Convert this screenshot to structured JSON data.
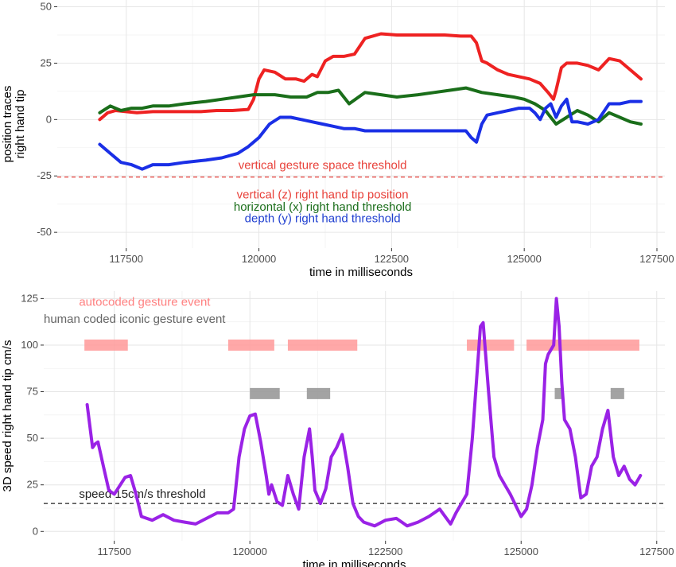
{
  "chart_data": [
    {
      "type": "line",
      "xlabel": "time in milliseconds",
      "ylabel_line1": "position traces",
      "ylabel_line2": "right hand tip",
      "xlim": [
        116200,
        127650
      ],
      "ylim": [
        -57,
        53
      ],
      "x_ticks": [
        117500,
        120000,
        122500,
        125000,
        127500
      ],
      "x_tick_labels": [
        "117500",
        "120000",
        "122500",
        "125000",
        "127500"
      ],
      "y_ticks": [
        -50,
        -25,
        0,
        25,
        50
      ],
      "y_tick_labels": [
        "-50",
        "-25",
        "0",
        "25",
        "50"
      ],
      "threshold": {
        "y": -25.5,
        "label": "vertical gesture space threshold",
        "color": "#e8413a",
        "label_x": 121200,
        "label_y": -22
      },
      "annotations": [
        {
          "text": "vertical (z) right hand tip position",
          "x": 121200,
          "y": -35,
          "color": "#e8413a"
        },
        {
          "text": "horizontal (x) right hand  threshold",
          "x": 121200,
          "y": -40.5,
          "color": "#1a6e1a"
        },
        {
          "text": "depth (y) right hand  threshold",
          "x": 121200,
          "y": -45.5,
          "color": "#1f3fd0"
        }
      ],
      "series": [
        {
          "color": "#ee2222",
          "x": [
            117000,
            117150,
            117300,
            117500,
            117700,
            118000,
            118300,
            118600,
            118900,
            119200,
            119500,
            119800,
            119900,
            120000,
            120100,
            120300,
            120500,
            120700,
            120850,
            121000,
            121100,
            121250,
            121400,
            121600,
            121800,
            122000,
            122300,
            122600,
            122900,
            123200,
            123500,
            123800,
            124000,
            124100,
            124200,
            124300,
            124500,
            124700,
            124900,
            125100,
            125300,
            125450,
            125550,
            125600,
            125700,
            125800,
            126000,
            126200,
            126400,
            126600,
            126800,
            127000,
            127200
          ],
          "y": [
            0,
            3,
            4,
            3.5,
            3,
            3.5,
            3.5,
            3.5,
            3.5,
            4,
            4,
            4.5,
            9,
            18,
            22,
            21,
            18,
            18,
            17,
            20,
            19,
            26,
            28,
            28,
            29,
            36,
            38,
            37.5,
            37.5,
            37.5,
            37.5,
            37,
            37,
            34,
            26,
            25,
            22,
            20,
            19,
            18,
            16,
            12,
            9,
            13,
            23,
            25,
            25,
            24,
            22,
            27,
            26,
            22,
            18
          ]
        },
        {
          "color": "#1a6e1a",
          "x": [
            117000,
            117200,
            117400,
            117600,
            117800,
            118000,
            118300,
            118600,
            119000,
            119300,
            119600,
            119900,
            120000,
            120300,
            120600,
            120900,
            121100,
            121300,
            121500,
            121700,
            122000,
            122300,
            122600,
            123000,
            123300,
            123600,
            123900,
            124200,
            124500,
            124800,
            125000,
            125200,
            125400,
            125600,
            125800,
            126000,
            126200,
            126400,
            126600,
            126800,
            127000,
            127200
          ],
          "y": [
            3,
            6,
            4,
            5,
            5,
            6,
            6,
            7,
            8,
            9,
            10,
            11,
            11,
            11,
            10,
            10,
            12,
            12,
            13,
            7,
            12,
            11,
            10,
            11,
            12,
            13,
            14,
            12,
            11,
            10,
            9,
            7,
            4,
            -2,
            1,
            4,
            2,
            -1,
            3,
            1,
            -1,
            -2
          ]
        },
        {
          "color": "#1a2fe6",
          "x": [
            117000,
            117200,
            117400,
            117600,
            117800,
            118000,
            118300,
            118600,
            119000,
            119300,
            119600,
            119800,
            119900,
            120000,
            120200,
            120400,
            120600,
            120800,
            121000,
            121200,
            121400,
            121600,
            121800,
            122000,
            122300,
            122600,
            123000,
            123300,
            123600,
            123900,
            124000,
            124100,
            124200,
            124300,
            124500,
            124700,
            124900,
            125100,
            125200,
            125300,
            125400,
            125500,
            125600,
            125700,
            125800,
            125900,
            126000,
            126200,
            126400,
            126600,
            126800,
            127000,
            127200
          ],
          "y": [
            -11,
            -15,
            -19,
            -20,
            -22,
            -20,
            -20,
            -19,
            -18,
            -17,
            -15,
            -12,
            -10,
            -8,
            -2,
            1,
            1,
            0,
            -1,
            -2,
            -3,
            -4,
            -4,
            -5,
            -5,
            -5,
            -5,
            -5,
            -5,
            -5,
            -8,
            -10,
            -2,
            2,
            3,
            4,
            5,
            5,
            3,
            0,
            5,
            7,
            1,
            6,
            9,
            -1,
            -1,
            -2,
            0,
            7,
            7,
            8,
            8
          ]
        }
      ]
    },
    {
      "type": "line",
      "xlabel": "time in milliseconds",
      "ylabel": "3D speed right hand tip cm/s",
      "xlim": [
        116200,
        127650
      ],
      "ylim": [
        -5,
        129
      ],
      "x_ticks": [
        117500,
        120000,
        122500,
        125000,
        127500
      ],
      "x_tick_labels": [
        "117500",
        "120000",
        "122500",
        "125000",
        "127500"
      ],
      "y_ticks": [
        0,
        25,
        50,
        75,
        100,
        125
      ],
      "y_tick_labels": [
        "0",
        "25",
        "50",
        "75",
        "100",
        "125"
      ],
      "threshold": {
        "y": 15,
        "label": "speed 15cm/s  threshold",
        "color": "#222222",
        "label_x": 116850,
        "label_y": 18
      },
      "legend_text": [
        {
          "text": "autocoded gesture event",
          "x": 116850,
          "y": 121,
          "color": "#ff8080"
        },
        {
          "text": "human coded iconic gesture event",
          "x": 116200,
          "y": 112,
          "color": "#666666"
        }
      ],
      "autocoded_events": {
        "y": 100,
        "color": "#ff9999",
        "intervals": [
          [
            116950,
            117750
          ],
          [
            119600,
            120450
          ],
          [
            120700,
            121980
          ],
          [
            124000,
            124870
          ],
          [
            125100,
            127180
          ]
        ]
      },
      "human_coded_events": {
        "y": 74,
        "color": "#999999",
        "intervals": [
          [
            120000,
            120550
          ],
          [
            121050,
            121480
          ],
          [
            125620,
            125780
          ],
          [
            126650,
            126900
          ]
        ]
      },
      "series": [
        {
          "color": "#9a22e6",
          "x": [
            117000,
            117100,
            117150,
            117200,
            117300,
            117400,
            117500,
            117700,
            117800,
            117900,
            118000,
            118200,
            118400,
            118600,
            118800,
            119000,
            119200,
            119400,
            119600,
            119700,
            119800,
            119900,
            120000,
            120100,
            120200,
            120300,
            120350,
            120400,
            120500,
            120600,
            120700,
            120800,
            120900,
            121000,
            121100,
            121150,
            121200,
            121300,
            121400,
            121500,
            121600,
            121700,
            121800,
            121900,
            122000,
            122100,
            122300,
            122500,
            122700,
            122900,
            123100,
            123300,
            123500,
            123700,
            123800,
            124000,
            124100,
            124200,
            124250,
            124300,
            124400,
            124500,
            124600,
            124800,
            125000,
            125100,
            125200,
            125300,
            125400,
            125450,
            125500,
            125600,
            125650,
            125700,
            125750,
            125800,
            125900,
            126000,
            126100,
            126200,
            126300,
            126400,
            126500,
            126600,
            126700,
            126800,
            126900,
            127000,
            127100,
            127200
          ],
          "y": [
            68,
            45,
            47,
            48,
            35,
            22,
            20,
            29,
            30,
            20,
            8,
            6,
            9,
            6,
            5,
            4,
            7,
            10,
            10,
            12,
            40,
            55,
            62,
            63,
            48,
            30,
            20,
            25,
            16,
            14,
            30,
            20,
            12,
            40,
            55,
            40,
            22,
            15,
            23,
            40,
            45,
            52,
            35,
            15,
            8,
            5,
            3,
            6,
            7,
            3,
            5,
            8,
            12,
            4,
            10,
            20,
            50,
            90,
            110,
            112,
            75,
            40,
            30,
            20,
            8,
            12,
            25,
            45,
            60,
            90,
            95,
            100,
            125,
            110,
            80,
            60,
            55,
            40,
            18,
            20,
            35,
            40,
            55,
            65,
            40,
            30,
            35,
            28,
            25,
            30
          ]
        }
      ]
    }
  ]
}
